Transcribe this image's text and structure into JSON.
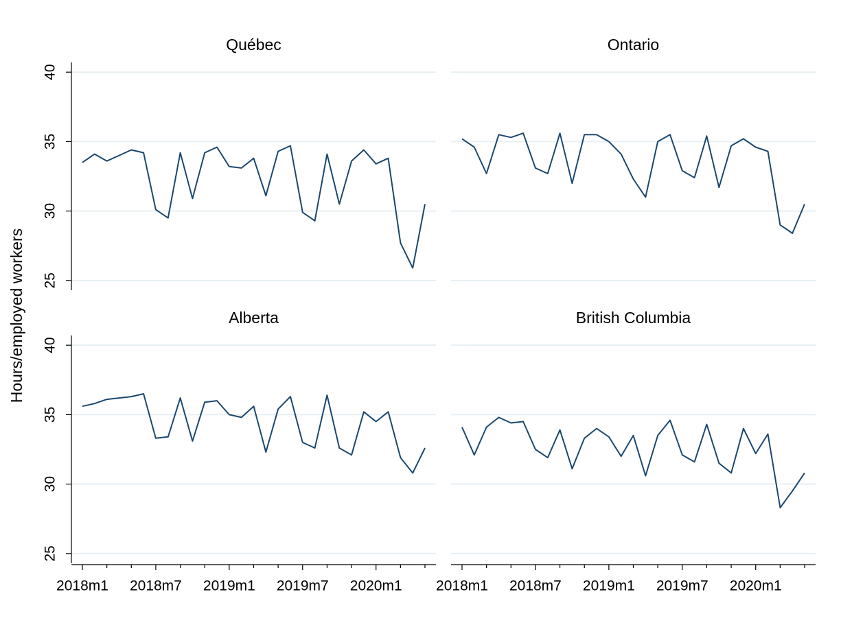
{
  "chart_data": {
    "type": "line",
    "ylabel": "Hours/employed workers",
    "color": "#1a476f",
    "grid": true,
    "ylim": [
      24.3,
      40.7
    ],
    "yticks": [
      25,
      30,
      35,
      40
    ],
    "categories": [
      "2018m1",
      null,
      null,
      null,
      null,
      null,
      "2018m7",
      null,
      null,
      null,
      null,
      null,
      "2019m1",
      null,
      null,
      null,
      null,
      null,
      "2019m7",
      null,
      null,
      null,
      null,
      null,
      "2020m1",
      null,
      null,
      null,
      null
    ],
    "panels": [
      {
        "title": "Québec",
        "values": [
          33.5,
          34.1,
          33.6,
          34.0,
          34.4,
          34.2,
          30.1,
          29.5,
          34.2,
          30.9,
          34.2,
          34.6,
          33.2,
          33.1,
          33.8,
          31.1,
          34.3,
          34.7,
          29.9,
          29.3,
          34.1,
          30.5,
          33.6,
          34.4,
          33.4,
          33.8,
          27.7,
          25.9,
          30.5
        ]
      },
      {
        "title": "Ontario",
        "values": [
          35.2,
          34.6,
          32.7,
          35.5,
          35.3,
          35.6,
          33.1,
          32.7,
          35.6,
          32.0,
          35.5,
          35.5,
          35.0,
          34.1,
          32.3,
          31.0,
          35.0,
          35.5,
          32.9,
          32.4,
          35.4,
          31.7,
          34.7,
          35.2,
          34.6,
          34.3,
          29.0,
          28.4,
          30.5
        ]
      },
      {
        "title": "Alberta",
        "values": [
          35.6,
          35.8,
          36.1,
          36.2,
          36.3,
          36.5,
          33.3,
          33.4,
          36.2,
          33.1,
          35.9,
          36.0,
          35.0,
          34.8,
          35.6,
          32.3,
          35.4,
          36.3,
          33.0,
          32.6,
          36.4,
          32.6,
          32.1,
          35.2,
          34.5,
          35.2,
          31.9,
          30.8,
          32.6
        ]
      },
      {
        "title": "British Columbia",
        "values": [
          34.1,
          32.1,
          34.1,
          34.8,
          34.4,
          34.5,
          32.5,
          31.9,
          33.9,
          31.1,
          33.3,
          34.0,
          33.4,
          32.0,
          33.5,
          30.6,
          33.5,
          34.6,
          32.1,
          31.6,
          34.3,
          31.5,
          30.8,
          34.0,
          32.2,
          33.6,
          28.3,
          29.5,
          30.8
        ]
      }
    ]
  }
}
